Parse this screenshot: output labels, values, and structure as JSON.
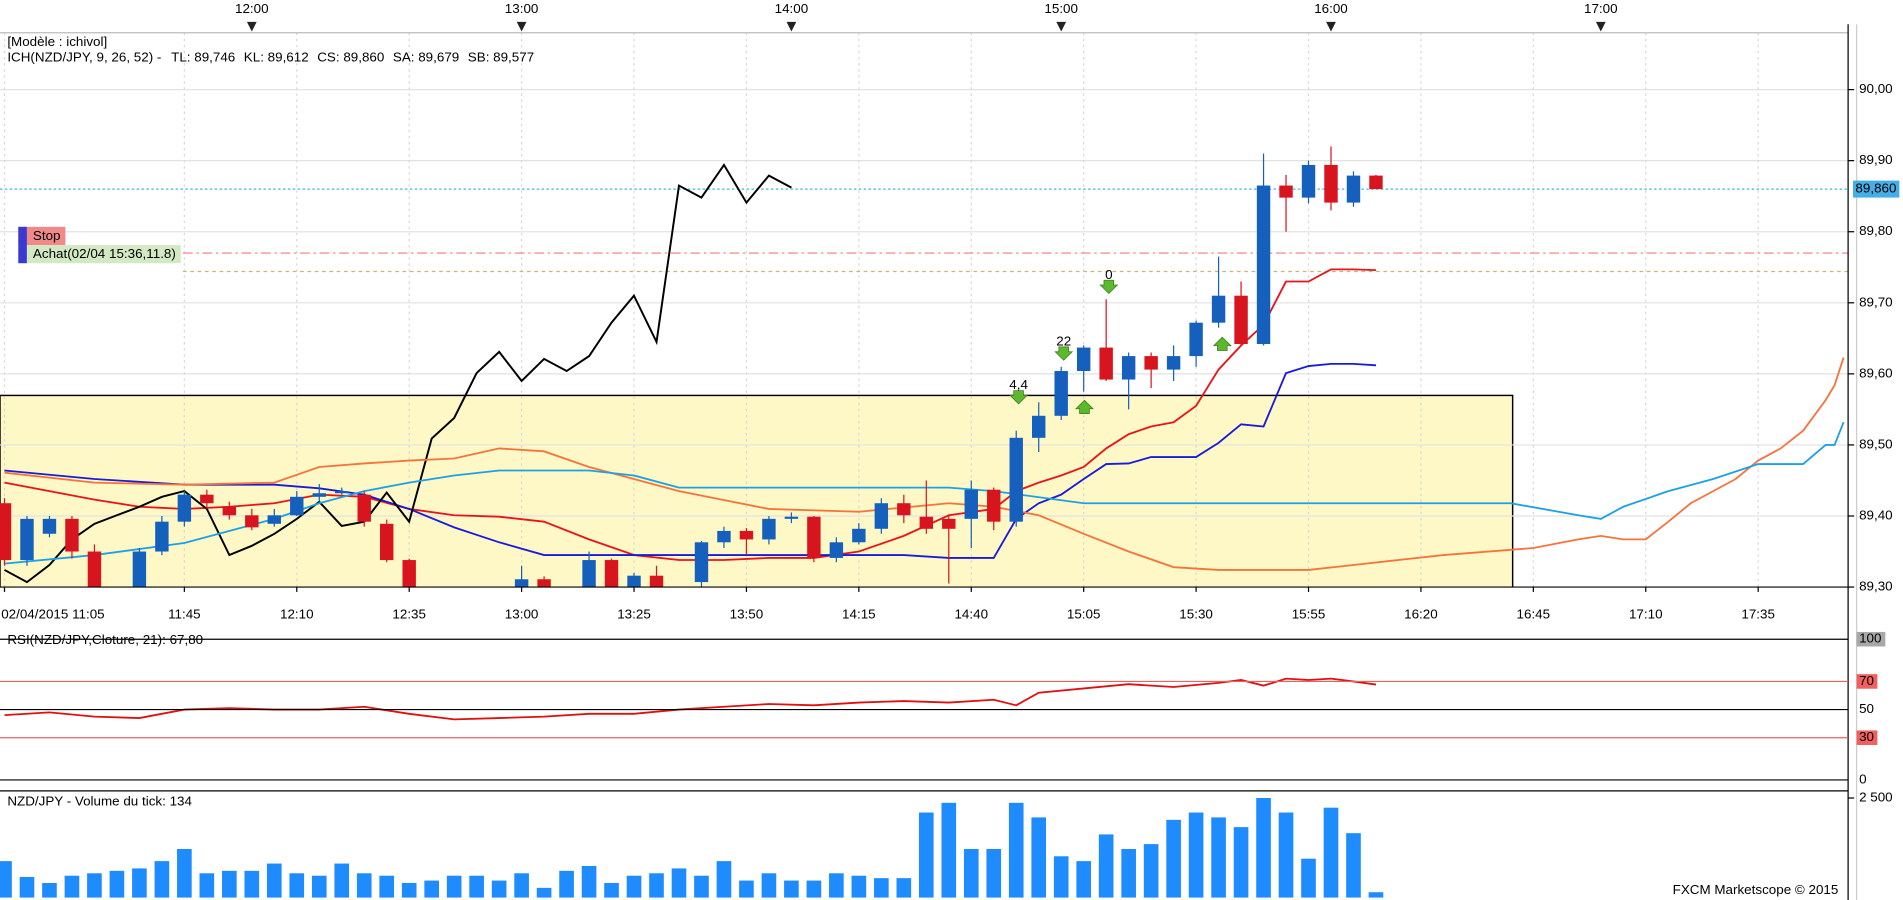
{
  "chart_data": [
    {
      "type": "candlestick",
      "title": "[Modèle : ichivol]",
      "subtitle": "ICH(NZD/JPY, 9, 26, 52) -",
      "xlim": [
        "11:04",
        "17:55"
      ],
      "xticks": [
        {
          "value": "11:05",
          "label": "02/04/2015 11:05"
        },
        "11:45",
        "12:10",
        "12:35",
        "13:00",
        "13:25",
        "13:50",
        "14:15",
        "14:40",
        "15:05",
        "15:30",
        "15:55",
        "16:20",
        "16:45",
        "17:10",
        "17:35"
      ],
      "top_ticks": [
        "12:00",
        "13:00",
        "14:00",
        "15:00",
        "16:00",
        "17:00"
      ],
      "ylim": [
        89.3,
        90.08
      ],
      "yticks": [
        {
          "value": 89.3,
          "label": "89,30"
        },
        {
          "value": 89.4,
          "label": "89,40"
        },
        {
          "value": 89.5,
          "label": "89,50"
        },
        {
          "value": 89.6,
          "label": "89,60"
        },
        {
          "value": 89.7,
          "label": "89,70"
        },
        {
          "value": 89.8,
          "label": "89,80"
        },
        {
          "value": 89.9,
          "label": "89,90"
        },
        {
          "value": 90.0,
          "label": "90,00"
        }
      ],
      "grid": true,
      "up_color": "#1560bd",
      "down_color": "#d8141f",
      "x": [
        "11:05",
        "11:10",
        "11:15",
        "11:20",
        "11:25",
        "11:35",
        "11:40",
        "11:45",
        "11:50",
        "11:55",
        "12:00",
        "12:05",
        "12:10",
        "12:15",
        "12:20",
        "12:25",
        "12:30",
        "12:35",
        "13:00",
        "13:05",
        "13:15",
        "13:20",
        "13:25",
        "13:30",
        "13:40",
        "13:45",
        "13:50",
        "13:55",
        "14:00",
        "14:05",
        "14:10",
        "14:15",
        "14:20",
        "14:25",
        "14:30",
        "14:35",
        "14:40",
        "14:45",
        "14:50",
        "14:55",
        "15:00",
        "15:05",
        "15:10",
        "15:15",
        "15:20",
        "15:25",
        "15:30",
        "15:35",
        "15:40",
        "15:45",
        "15:50",
        "15:55",
        "16:00",
        "16:05",
        "16:10"
      ],
      "open": [
        89.418,
        89.338,
        89.375,
        89.396,
        89.35,
        89.3,
        89.35,
        89.392,
        89.43,
        89.413,
        89.401,
        89.389,
        89.401,
        89.427,
        89.432,
        89.43,
        89.389,
        89.338,
        89.3,
        89.311,
        89.3,
        89.338,
        89.3,
        89.316,
        89.307,
        89.363,
        89.379,
        89.367,
        89.396,
        89.399,
        89.341,
        89.363,
        89.382,
        89.418,
        89.399,
        89.396,
        89.396,
        89.437,
        89.392,
        89.51,
        89.541,
        89.604,
        89.637,
        89.592,
        89.625,
        89.606,
        89.625,
        89.672,
        89.71,
        89.642,
        89.865,
        89.848,
        89.894,
        89.841,
        89.879
      ],
      "high": [
        89.425,
        89.4,
        89.4,
        89.4,
        89.36,
        89.355,
        89.4,
        89.435,
        89.437,
        89.42,
        89.41,
        89.41,
        89.435,
        89.445,
        89.44,
        89.435,
        89.395,
        89.34,
        89.33,
        89.315,
        89.35,
        89.34,
        89.32,
        89.33,
        89.365,
        89.385,
        89.383,
        89.4,
        89.405,
        89.4,
        89.37,
        89.39,
        89.425,
        89.43,
        89.45,
        89.4,
        89.45,
        89.44,
        89.52,
        89.56,
        89.61,
        89.64,
        89.705,
        89.63,
        89.63,
        89.64,
        89.675,
        89.765,
        89.73,
        89.91,
        89.88,
        89.9,
        89.92,
        89.885,
        89.88
      ],
      "low": [
        89.33,
        89.33,
        89.37,
        89.34,
        89.29,
        89.29,
        89.345,
        89.385,
        89.41,
        89.395,
        89.38,
        89.385,
        89.4,
        89.42,
        89.43,
        89.385,
        89.335,
        89.29,
        89.29,
        89.29,
        89.29,
        89.29,
        89.29,
        89.29,
        89.3,
        89.355,
        89.345,
        89.36,
        89.39,
        89.335,
        89.335,
        89.36,
        89.375,
        89.39,
        89.375,
        89.305,
        89.355,
        89.38,
        89.385,
        89.49,
        89.535,
        89.575,
        89.59,
        89.55,
        89.58,
        89.59,
        89.61,
        89.665,
        89.64,
        89.64,
        89.8,
        89.84,
        89.83,
        89.835,
        89.86
      ],
      "close": [
        89.338,
        89.396,
        89.396,
        89.35,
        89.3,
        89.35,
        89.392,
        89.43,
        89.418,
        89.401,
        89.384,
        89.401,
        89.427,
        89.432,
        89.435,
        89.392,
        89.338,
        89.3,
        89.311,
        89.3,
        89.338,
        89.3,
        89.316,
        89.3,
        89.363,
        89.379,
        89.367,
        89.396,
        89.399,
        89.341,
        89.363,
        89.382,
        89.418,
        89.401,
        89.382,
        89.382,
        89.437,
        89.392,
        89.51,
        89.541,
        89.604,
        89.637,
        89.592,
        89.625,
        89.606,
        89.625,
        89.672,
        89.71,
        89.642,
        89.865,
        89.848,
        89.894,
        89.841,
        89.879,
        89.86
      ],
      "series": [
        {
          "name": "TL: 89,746",
          "color": "#e8141a",
          "x": [
            "11:05",
            "11:15",
            "11:25",
            "11:35",
            "11:45",
            "11:55",
            "12:05",
            "12:15",
            "12:25",
            "12:35",
            "12:45",
            "12:55",
            "13:05",
            "13:15",
            "13:25",
            "13:35",
            "13:45",
            "13:55",
            "14:05",
            "14:15",
            "14:25",
            "14:35",
            "14:45",
            "14:50",
            "14:55",
            "15:00",
            "15:05",
            "15:10",
            "15:15",
            "15:20",
            "15:25",
            "15:30",
            "15:35",
            "15:40",
            "15:45",
            "15:50",
            "15:55",
            "16:00",
            "16:05",
            "16:10"
          ],
          "values": [
            89.447,
            89.435,
            89.423,
            89.413,
            89.41,
            89.413,
            89.418,
            89.43,
            89.427,
            89.41,
            89.401,
            89.399,
            89.392,
            89.367,
            89.345,
            89.338,
            89.338,
            89.341,
            89.341,
            89.35,
            89.372,
            89.401,
            89.41,
            89.435,
            89.447,
            89.457,
            89.469,
            89.495,
            89.515,
            89.526,
            89.532,
            89.555,
            89.606,
            89.64,
            89.669,
            89.73,
            89.73,
            89.747,
            89.747,
            89.746
          ]
        },
        {
          "name": "KL: 89,612",
          "color": "#1a1adb",
          "x": [
            "11:05",
            "11:25",
            "11:45",
            "12:05",
            "12:15",
            "12:25",
            "12:35",
            "12:45",
            "12:55",
            "13:05",
            "13:15",
            "13:35",
            "13:55",
            "14:15",
            "14:25",
            "14:35",
            "14:45",
            "14:50",
            "14:55",
            "15:00",
            "15:05",
            "15:10",
            "15:15",
            "15:20",
            "15:25",
            "15:30",
            "15:35",
            "15:40",
            "15:45",
            "15:50",
            "15:55",
            "16:00",
            "16:05",
            "16:10"
          ],
          "values": [
            89.464,
            89.452,
            89.444,
            89.444,
            89.439,
            89.43,
            89.41,
            89.384,
            89.363,
            89.345,
            89.345,
            89.345,
            89.345,
            89.345,
            89.345,
            89.341,
            89.341,
            89.396,
            89.418,
            89.43,
            89.452,
            89.473,
            89.474,
            89.483,
            89.483,
            89.483,
            89.503,
            89.529,
            89.526,
            89.601,
            89.611,
            89.614,
            89.614,
            89.612
          ]
        },
        {
          "name": "CS: 89,860",
          "color": "#000000",
          "x": [
            "11:05",
            "11:10",
            "11:15",
            "11:20",
            "11:25",
            "11:30",
            "11:35",
            "11:40",
            "11:45",
            "11:50",
            "11:55",
            "12:00",
            "12:05",
            "12:10",
            "12:15",
            "12:20",
            "12:25",
            "12:30",
            "12:35",
            "12:40",
            "12:45",
            "12:50",
            "12:55",
            "13:00",
            "13:05",
            "13:10",
            "13:15",
            "13:20",
            "13:25",
            "13:30",
            "13:35",
            "13:40",
            "13:45",
            "13:50",
            "13:55",
            "14:00"
          ],
          "values": [
            89.324,
            89.307,
            89.331,
            89.367,
            89.389,
            89.401,
            89.413,
            89.427,
            89.435,
            89.41,
            89.345,
            89.358,
            89.375,
            89.396,
            89.42,
            89.386,
            89.392,
            89.433,
            89.392,
            89.509,
            89.538,
            89.601,
            89.631,
            89.59,
            89.621,
            89.604,
            89.625,
            89.672,
            89.71,
            89.645,
            89.865,
            89.848,
            89.894,
            89.841,
            89.879,
            89.862
          ]
        },
        {
          "name": "SA: 89,679",
          "color": "#f5743c",
          "x": [
            "11:05",
            "11:25",
            "11:45",
            "12:05",
            "12:15",
            "12:25",
            "12:35",
            "12:45",
            "12:55",
            "13:05",
            "13:15",
            "13:25",
            "13:35",
            "13:55",
            "14:15",
            "14:35",
            "14:45",
            "14:55",
            "15:05",
            "15:15",
            "15:25",
            "15:35",
            "15:55",
            "16:05",
            "16:15",
            "16:25",
            "16:45",
            "16:55",
            "17:00",
            "17:05",
            "17:10",
            "17:15",
            "17:20",
            "17:25",
            "17:30",
            "17:35",
            "17:40",
            "17:45",
            "17:50",
            "17:52",
            "17:54"
          ],
          "values": [
            89.461,
            89.447,
            89.444,
            89.447,
            89.469,
            89.474,
            89.478,
            89.481,
            89.495,
            89.491,
            89.469,
            89.452,
            89.435,
            89.41,
            89.406,
            89.418,
            89.413,
            89.401,
            89.375,
            89.35,
            89.328,
            89.324,
            89.324,
            89.331,
            89.338,
            89.345,
            89.355,
            89.367,
            89.372,
            89.367,
            89.367,
            89.392,
            89.418,
            89.435,
            89.452,
            89.478,
            89.495,
            89.52,
            89.563,
            89.584,
            89.623
          ]
        },
        {
          "name": "SB: 89,577",
          "color": "#1ea0e6",
          "x": [
            "11:05",
            "11:25",
            "11:45",
            "12:05",
            "12:15",
            "12:25",
            "12:35",
            "12:45",
            "12:55",
            "13:15",
            "13:25",
            "13:35",
            "13:55",
            "14:35",
            "14:45",
            "15:05",
            "15:55",
            "16:40",
            "16:55",
            "17:00",
            "17:05",
            "17:15",
            "17:25",
            "17:35",
            "17:45",
            "17:50",
            "17:52",
            "17:54"
          ],
          "values": [
            89.333,
            89.345,
            89.362,
            89.396,
            89.418,
            89.435,
            89.447,
            89.457,
            89.464,
            89.464,
            89.457,
            89.44,
            89.44,
            89.44,
            89.435,
            89.418,
            89.418,
            89.418,
            89.401,
            89.396,
            89.413,
            89.435,
            89.452,
            89.473,
            89.473,
            89.5,
            89.5,
            89.532
          ]
        }
      ],
      "current_price": {
        "value": 89.86,
        "label": "89,860"
      },
      "levels": [
        {
          "name": "Stop",
          "value": 89.77,
          "color": "#f27c7c"
        },
        {
          "name": "Achat(02/04 15:36,11.8)",
          "value": 89.744,
          "color": "#c9b57a"
        }
      ],
      "annotations": [
        "4,4",
        "22",
        "0"
      ]
    },
    {
      "type": "line",
      "title": "RSI(NZD/JPY,Cloture, 21): 67,80",
      "color": "#e01010",
      "ylim": [
        0,
        100
      ],
      "yticks": [
        0,
        30,
        50,
        70,
        100
      ],
      "tick_colors": [
        "#000000",
        "#e86060",
        "#000000",
        "#e86060",
        "#000000"
      ],
      "x": [
        "11:05",
        "11:15",
        "11:25",
        "11:35",
        "11:45",
        "11:55",
        "12:05",
        "12:15",
        "12:25",
        "12:35",
        "12:45",
        "12:55",
        "13:05",
        "13:15",
        "13:25",
        "13:35",
        "13:45",
        "13:55",
        "14:05",
        "14:15",
        "14:25",
        "14:35",
        "14:45",
        "14:50",
        "14:55",
        "15:05",
        "15:15",
        "15:25",
        "15:35",
        "15:40",
        "15:45",
        "15:50",
        "15:55",
        "16:00",
        "16:05",
        "16:10"
      ],
      "values": [
        46,
        48,
        45,
        44,
        50,
        51,
        50,
        50,
        52,
        47,
        43,
        44,
        45,
        47,
        47,
        50,
        52,
        54,
        53,
        55,
        56,
        55,
        57,
        53,
        62,
        65,
        68,
        66,
        69,
        71,
        67,
        72,
        71,
        72,
        70,
        67.8
      ]
    },
    {
      "type": "bar",
      "title": "NZD/JPY - Volume du tick: 134",
      "color": "#1e8cff",
      "ylim": [
        0,
        2680
      ],
      "yticks": [
        {
          "value": 2500,
          "label": "2 500"
        }
      ],
      "x": [
        "11:05",
        "11:10",
        "11:15",
        "11:20",
        "11:25",
        "11:30",
        "11:35",
        "11:40",
        "11:45",
        "11:50",
        "11:55",
        "12:00",
        "12:05",
        "12:10",
        "12:15",
        "12:20",
        "12:25",
        "12:30",
        "12:35",
        "12:40",
        "12:45",
        "12:50",
        "12:55",
        "13:00",
        "13:05",
        "13:10",
        "13:15",
        "13:20",
        "13:25",
        "13:30",
        "13:35",
        "13:40",
        "13:45",
        "13:50",
        "13:55",
        "14:00",
        "14:05",
        "14:10",
        "14:15",
        "14:20",
        "14:25",
        "14:30",
        "14:35",
        "14:40",
        "14:45",
        "14:50",
        "14:55",
        "15:00",
        "15:05",
        "15:10",
        "15:15",
        "15:20",
        "15:25",
        "15:30",
        "15:35",
        "15:40",
        "15:45",
        "15:50",
        "15:55",
        "16:00",
        "16:05",
        "16:10"
      ],
      "values": [
        915,
        518,
        366,
        549,
        610,
        671,
        732,
        915,
        1220,
        610,
        671,
        671,
        854,
        610,
        549,
        854,
        610,
        549,
        366,
        427,
        549,
        549,
        427,
        610,
        244,
        671,
        793,
        366,
        549,
        610,
        732,
        549,
        915,
        427,
        610,
        427,
        427,
        610,
        549,
        488,
        488,
        2135,
        2379,
        1220,
        1220,
        2379,
        2013,
        1037,
        915,
        1586,
        1220,
        1342,
        1952,
        2135,
        2013,
        1769,
        2500,
        2135,
        976,
        2257,
        1617,
        134
      ],
      "footer": "FXCM Marketscope © 2015"
    }
  ]
}
